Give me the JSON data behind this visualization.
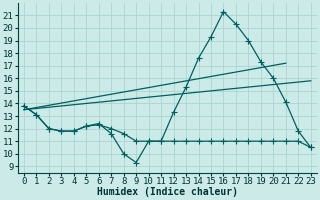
{
  "title": "",
  "xlabel": "Humidex (Indice chaleur)",
  "bg_color": "#cceae7",
  "grid_color": "#aad4d0",
  "line_color": "#006060",
  "xlim": [
    -0.5,
    23.5
  ],
  "ylim": [
    8.5,
    22.0
  ],
  "yticks": [
    9,
    10,
    11,
    12,
    13,
    14,
    15,
    16,
    17,
    18,
    19,
    20,
    21
  ],
  "xticks": [
    0,
    1,
    2,
    3,
    4,
    5,
    6,
    7,
    8,
    9,
    10,
    11,
    12,
    13,
    14,
    15,
    16,
    17,
    18,
    19,
    20,
    21,
    22,
    23
  ],
  "line1_x": [
    0,
    1,
    2,
    3,
    4,
    5,
    6,
    7,
    8,
    9,
    10,
    11,
    12,
    13,
    14,
    15,
    16,
    17,
    18,
    19,
    20,
    21,
    22,
    23
  ],
  "line1_y": [
    13.8,
    13.1,
    12.0,
    11.8,
    11.8,
    12.2,
    12.4,
    11.6,
    10.0,
    9.3,
    11.0,
    11.0,
    13.3,
    15.3,
    17.6,
    19.3,
    21.3,
    20.3,
    19.0,
    17.3,
    16.0,
    14.1,
    11.8,
    10.5
  ],
  "line2_x": [
    0,
    1,
    2,
    3,
    4,
    5,
    6,
    7,
    8,
    9,
    10,
    11,
    12,
    13,
    14,
    15,
    16,
    17,
    18,
    19,
    20,
    21,
    22,
    23
  ],
  "line2_y": [
    13.8,
    13.1,
    12.0,
    11.8,
    11.8,
    12.2,
    12.3,
    12.0,
    11.6,
    11.0,
    11.0,
    11.0,
    11.0,
    11.0,
    11.0,
    11.0,
    11.0,
    11.0,
    11.0,
    11.0,
    11.0,
    11.0,
    11.0,
    10.5
  ],
  "line3_x": [
    0,
    23
  ],
  "line3_y": [
    13.5,
    15.8
  ],
  "line4_x": [
    0,
    21
  ],
  "line4_y": [
    13.5,
    17.2
  ],
  "marker": "+",
  "markersize": 4,
  "linewidth": 0.9,
  "font_size": 6.5
}
